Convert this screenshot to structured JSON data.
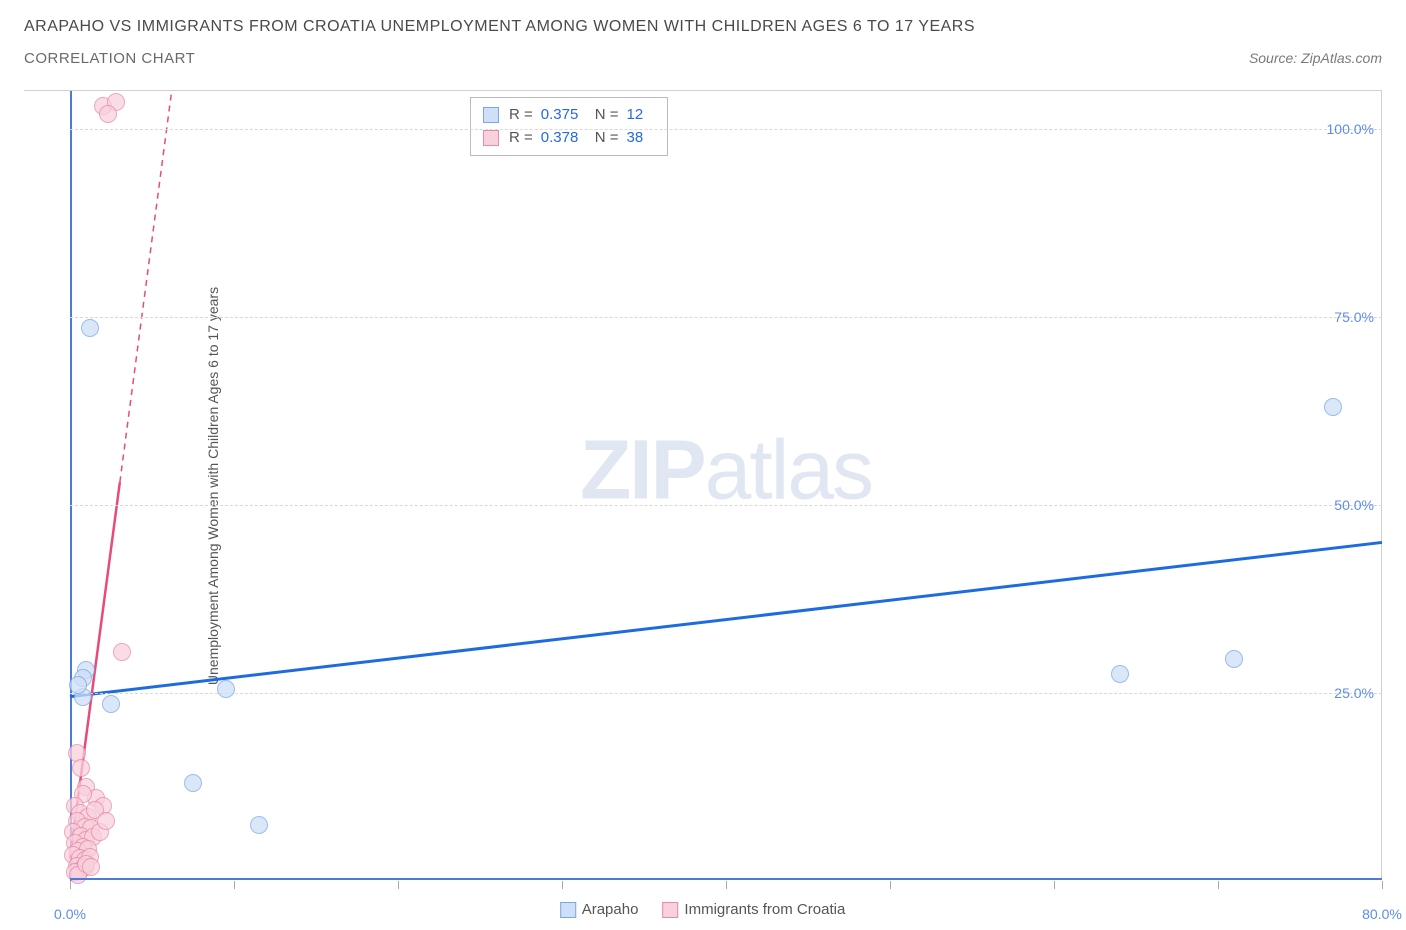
{
  "header": {
    "title": "ARAPAHO VS IMMIGRANTS FROM CROATIA UNEMPLOYMENT AMONG WOMEN WITH CHILDREN AGES 6 TO 17 YEARS",
    "subtitle": "CORRELATION CHART",
    "source": "Source: ZipAtlas.com"
  },
  "chart": {
    "type": "scatter",
    "y_label": "Unemployment Among Women with Children Ages 6 to 17 years",
    "watermark_bold": "ZIP",
    "watermark_light": "atlas",
    "background_color": "#ffffff",
    "grid_color": "#d8d8d8",
    "axis_line_color": "#4a7bd8",
    "tick_label_color": "#5b8def",
    "xlim": [
      0,
      80
    ],
    "ylim": [
      0,
      105
    ],
    "y_ticks": [
      {
        "v": 25,
        "label": "25.0%"
      },
      {
        "v": 50,
        "label": "50.0%"
      },
      {
        "v": 75,
        "label": "75.0%"
      },
      {
        "v": 100,
        "label": "100.0%"
      }
    ],
    "x_ticks": [
      0,
      10,
      20,
      30,
      40,
      50,
      60,
      70,
      80
    ],
    "x_tick_labels": {
      "0": "0.0%",
      "80": "80.0%"
    },
    "series": [
      {
        "name": "Arapaho",
        "color_fill": "#cde0f7",
        "color_stroke": "#7aa8e0",
        "marker_radius": 9,
        "marker_opacity": 0.75,
        "trend": {
          "x1": 0,
          "y1": 24.5,
          "x2": 80,
          "y2": 45,
          "color": "#1e6be0",
          "width": 3,
          "dash": "none"
        },
        "R": "0.375",
        "N": "12",
        "points": [
          {
            "x": 1.2,
            "y": 73.5
          },
          {
            "x": 77.0,
            "y": 63.0
          },
          {
            "x": 64.0,
            "y": 27.5
          },
          {
            "x": 71.0,
            "y": 29.5
          },
          {
            "x": 1.0,
            "y": 28.0
          },
          {
            "x": 0.8,
            "y": 27.0
          },
          {
            "x": 2.5,
            "y": 23.5
          },
          {
            "x": 9.5,
            "y": 25.5
          },
          {
            "x": 7.5,
            "y": 13.0
          },
          {
            "x": 11.5,
            "y": 7.5
          },
          {
            "x": 0.8,
            "y": 24.5
          },
          {
            "x": 0.5,
            "y": 26.0
          }
        ]
      },
      {
        "name": "Immigrants from Croatia",
        "color_fill": "#f8d1dd",
        "color_stroke": "#e88aa8",
        "marker_radius": 9,
        "marker_opacity": 0.75,
        "trend": {
          "x1": 0,
          "y1": 3,
          "x2": 6.2,
          "y2": 105,
          "color": "#e84a7a",
          "width": 2.5,
          "dash": "solid-then-dash"
        },
        "R": "0.378",
        "N": "38",
        "points": [
          {
            "x": 2.0,
            "y": 103.0
          },
          {
            "x": 2.8,
            "y": 103.5
          },
          {
            "x": 2.3,
            "y": 102.0
          },
          {
            "x": 3.2,
            "y": 30.5
          },
          {
            "x": 0.4,
            "y": 17.0
          },
          {
            "x": 0.7,
            "y": 15.0
          },
          {
            "x": 1.0,
            "y": 12.5
          },
          {
            "x": 1.6,
            "y": 11.0
          },
          {
            "x": 2.0,
            "y": 10.0
          },
          {
            "x": 0.8,
            "y": 11.5
          },
          {
            "x": 0.3,
            "y": 10.0
          },
          {
            "x": 0.6,
            "y": 9.0
          },
          {
            "x": 1.1,
            "y": 8.5
          },
          {
            "x": 1.5,
            "y": 9.5
          },
          {
            "x": 0.4,
            "y": 8.0
          },
          {
            "x": 0.9,
            "y": 7.2
          },
          {
            "x": 1.3,
            "y": 7.0
          },
          {
            "x": 0.2,
            "y": 6.5
          },
          {
            "x": 0.7,
            "y": 6.0
          },
          {
            "x": 1.0,
            "y": 5.5
          },
          {
            "x": 1.4,
            "y": 5.8
          },
          {
            "x": 0.3,
            "y": 5.0
          },
          {
            "x": 0.8,
            "y": 4.5
          },
          {
            "x": 0.5,
            "y": 4.0
          },
          {
            "x": 1.1,
            "y": 4.2
          },
          {
            "x": 0.2,
            "y": 3.5
          },
          {
            "x": 0.6,
            "y": 3.0
          },
          {
            "x": 0.9,
            "y": 2.8
          },
          {
            "x": 1.2,
            "y": 3.2
          },
          {
            "x": 1.8,
            "y": 6.5
          },
          {
            "x": 2.2,
            "y": 8.0
          },
          {
            "x": 0.4,
            "y": 2.0
          },
          {
            "x": 0.7,
            "y": 1.5
          },
          {
            "x": 0.9,
            "y": 1.8
          },
          {
            "x": 0.3,
            "y": 1.2
          },
          {
            "x": 0.5,
            "y": 0.8
          },
          {
            "x": 1.0,
            "y": 2.3
          },
          {
            "x": 1.3,
            "y": 1.9
          }
        ]
      }
    ],
    "legend_labels": {
      "R_prefix": "R =",
      "N_prefix": "N ="
    },
    "bottom_legend": [
      {
        "label": "Arapaho",
        "fill": "#cde0f7",
        "stroke": "#7aa8e0"
      },
      {
        "label": "Immigrants from Croatia",
        "fill": "#f8d1dd",
        "stroke": "#e88aa8"
      }
    ]
  }
}
